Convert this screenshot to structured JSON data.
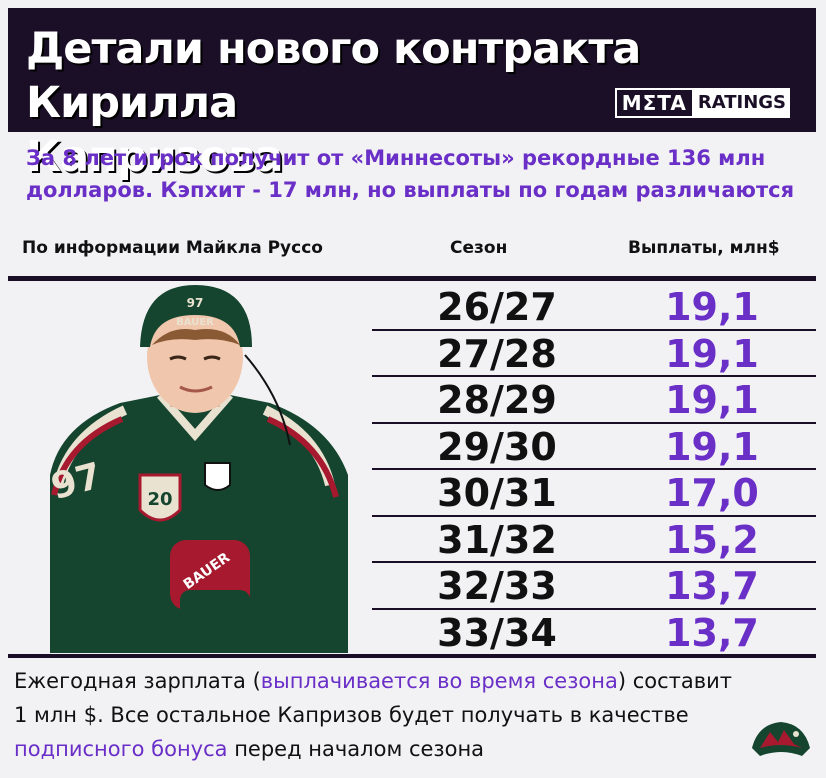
{
  "header": {
    "title_line1": "Детали нового контракта Кирилла",
    "title_line2": "Капризова",
    "logo_meta": "MΣTA",
    "logo_ratings": "RATINGS"
  },
  "subtitle": {
    "line1": "За 8 лет игрок получит от «Миннесоты» рекордные 136 млн",
    "line2": "долларов. Кэпхит - 17 млн, но выплаты по годам различаются"
  },
  "columns": {
    "source": "По информации Майкла Руссо",
    "season": "Сезон",
    "payments": "Выплаты, млн$"
  },
  "rows": [
    {
      "season": "26/27",
      "payment": "19,1"
    },
    {
      "season": "27/28",
      "payment": "19,1"
    },
    {
      "season": "28/29",
      "payment": "19,1"
    },
    {
      "season": "29/30",
      "payment": "19,1"
    },
    {
      "season": "30/31",
      "payment": "17,0"
    },
    {
      "season": "31/32",
      "payment": "15,2"
    },
    {
      "season": "32/33",
      "payment": "13,7"
    },
    {
      "season": "33/34",
      "payment": "13,7"
    }
  ],
  "footer": {
    "part1": "Ежегодная зарплата (",
    "highlight1": "выплачивается во время сезона",
    "part2": ") составит",
    "line2": "1 млн $. Все остальное Капризов будет получать в качестве",
    "highlight2": "подписного бонуса",
    "part3": " перед началом сезона"
  },
  "player": {
    "jersey_number": "97",
    "patch_number": "20",
    "helmet_number": "97",
    "helmet_brand": "BAUER",
    "glove_brand": "BAUER"
  },
  "colors": {
    "accent": "#6a2fc7",
    "header_bg": "#1a0f26",
    "jersey_green": "#15452f"
  },
  "icons": {
    "team_logo": "minnesota-wild-logo-icon"
  }
}
